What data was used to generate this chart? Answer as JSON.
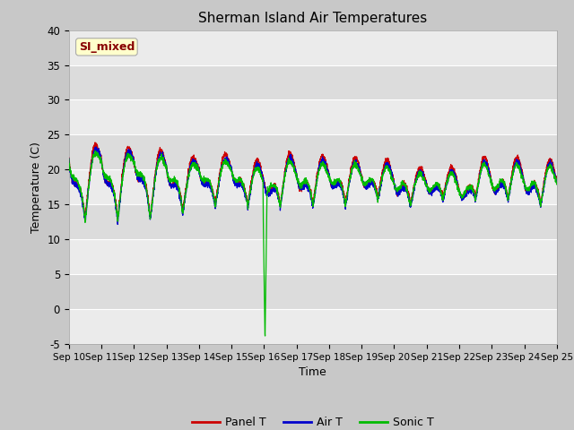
{
  "title": "Sherman Island Air Temperatures",
  "xlabel": "Time",
  "ylabel": "Temperature (C)",
  "ylim": [
    -5,
    40
  ],
  "xlim": [
    0,
    15
  ],
  "x_tick_labels": [
    "Sep 10",
    "Sep 11",
    "Sep 12",
    "Sep 13",
    "Sep 14",
    "Sep 15",
    "Sep 16",
    "Sep 17",
    "Sep 18",
    "Sep 19",
    "Sep 20",
    "Sep 21",
    "Sep 22",
    "Sep 23",
    "Sep 24",
    "Sep 25"
  ],
  "y_ticks": [
    -5,
    0,
    5,
    10,
    15,
    20,
    25,
    30,
    35,
    40
  ],
  "colors": {
    "panel_t": "#cc0000",
    "air_t": "#0000cc",
    "sonic_t": "#00bb00",
    "fig_bg": "#c8c8c8",
    "plot_bg_dark": "#dcdcdc",
    "plot_bg_light": "#ebebeb",
    "grid_line": "#ffffff"
  },
  "legend_label": "SI_mixed",
  "legend_text_color": "#880000",
  "legend_bg": "#ffffcc",
  "series_labels": [
    "Panel T",
    "Air T",
    "Sonic T"
  ]
}
